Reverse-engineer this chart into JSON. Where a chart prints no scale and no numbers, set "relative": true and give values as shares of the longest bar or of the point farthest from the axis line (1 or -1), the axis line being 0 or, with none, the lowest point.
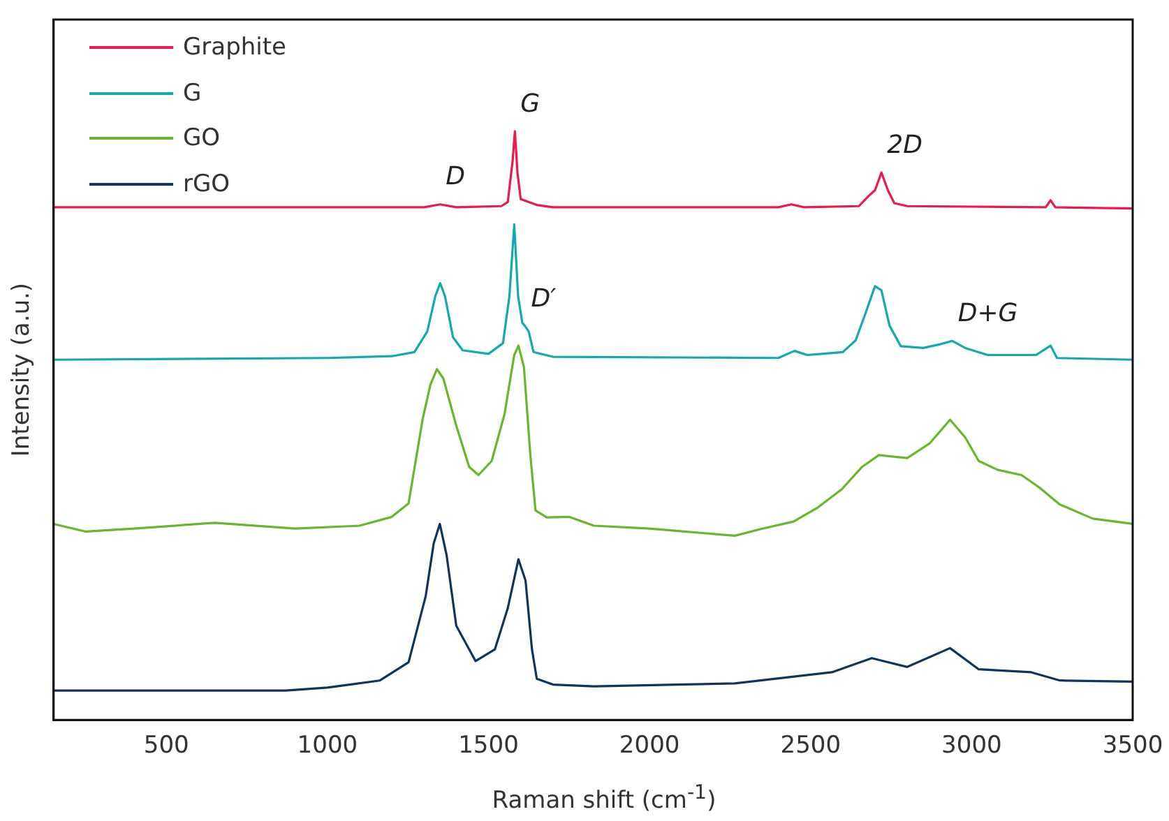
{
  "chart_data": {
    "type": "line",
    "relative": true,
    "xlabel": "Raman shift (cm$^{-1}$)",
    "ylabel": "Intensity (a.u.)",
    "xlim": [
      150,
      3500
    ],
    "xticks": [
      500,
      1000,
      1500,
      2000,
      2500,
      3000,
      3500
    ],
    "tick_labels": "x",
    "grid": false,
    "legend": "top left",
    "marker": "none",
    "line_style": "solid",
    "annotations": [
      {
        "text": "D",
        "x": 1350,
        "y": 0.876
      },
      {
        "text": "G",
        "x": 1582,
        "y": 1.0
      },
      {
        "text": "2D",
        "x": 2720,
        "y": 0.93
      },
      {
        "text": "D′",
        "x": 1615,
        "y": 0.668
      },
      {
        "text": "D+G",
        "x": 2940,
        "y": 0.644
      }
    ],
    "series": [
      {
        "name": "Graphite",
        "color": "#f0174a",
        "x": [
          150,
          1000,
          1300,
          1350,
          1400,
          1540,
          1560,
          1575,
          1582,
          1590,
          1600,
          1650,
          1700,
          2400,
          2440,
          2480,
          2650,
          2680,
          2700,
          2720,
          2740,
          2760,
          2800,
          3230,
          3245,
          3260,
          3500
        ],
        "values": [
          0.871,
          0.871,
          0.871,
          0.876,
          0.871,
          0.873,
          0.88,
          0.95,
          1.0,
          0.93,
          0.885,
          0.875,
          0.871,
          0.871,
          0.876,
          0.871,
          0.873,
          0.89,
          0.9,
          0.93,
          0.9,
          0.878,
          0.873,
          0.871,
          0.883,
          0.871,
          0.869
        ]
      },
      {
        "name": "G",
        "color": "#14a9ad",
        "x": [
          150,
          1000,
          1200,
          1270,
          1310,
          1335,
          1350,
          1365,
          1390,
          1420,
          1500,
          1545,
          1565,
          1580,
          1592,
          1605,
          1615,
          1625,
          1640,
          1700,
          2400,
          2450,
          2490,
          2600,
          2640,
          2670,
          2700,
          2720,
          2745,
          2780,
          2850,
          2900,
          2940,
          2980,
          3050,
          3200,
          3245,
          3265,
          3500
        ],
        "values": [
          0.612,
          0.615,
          0.618,
          0.625,
          0.66,
          0.72,
          0.742,
          0.72,
          0.65,
          0.628,
          0.622,
          0.64,
          0.72,
          0.842,
          0.72,
          0.675,
          0.668,
          0.66,
          0.625,
          0.617,
          0.615,
          0.627,
          0.62,
          0.625,
          0.645,
          0.69,
          0.737,
          0.73,
          0.67,
          0.635,
          0.632,
          0.638,
          0.644,
          0.632,
          0.62,
          0.62,
          0.636,
          0.615,
          0.612
        ]
      },
      {
        "name": "GO",
        "color": "#66b82a",
        "x": [
          150,
          250,
          400,
          650,
          900,
          1100,
          1200,
          1252,
          1296,
          1320,
          1340,
          1360,
          1400,
          1440,
          1469,
          1510,
          1550,
          1580,
          1593,
          1610,
          1630,
          1646,
          1681,
          1750,
          1827,
          2000,
          2265,
          2350,
          2447,
          2520,
          2597,
          2660,
          2712,
          2800,
          2870,
          2933,
          2980,
          3022,
          3080,
          3155,
          3210,
          3274,
          3376,
          3500
        ],
        "values": [
          0.333,
          0.32,
          0.325,
          0.335,
          0.325,
          0.33,
          0.345,
          0.368,
          0.512,
          0.57,
          0.596,
          0.58,
          0.5,
          0.43,
          0.416,
          0.44,
          0.52,
          0.62,
          0.636,
          0.6,
          0.45,
          0.356,
          0.344,
          0.345,
          0.33,
          0.325,
          0.313,
          0.325,
          0.337,
          0.36,
          0.392,
          0.43,
          0.45,
          0.445,
          0.47,
          0.51,
          0.48,
          0.44,
          0.425,
          0.416,
          0.395,
          0.366,
          0.342,
          0.333
        ]
      },
      {
        "name": "rGO",
        "color": "#0d3560",
        "x": [
          150,
          500,
          871,
          1000,
          1163,
          1252,
          1305,
          1330,
          1349,
          1370,
          1400,
          1460,
          1520,
          1560,
          1593,
          1615,
          1635,
          1650,
          1700,
          1827,
          2265,
          2566,
          2690,
          2800,
          2933,
          3022,
          3185,
          3274,
          3500
        ],
        "values": [
          0.05,
          0.05,
          0.05,
          0.055,
          0.067,
          0.098,
          0.21,
          0.3,
          0.333,
          0.28,
          0.16,
          0.1,
          0.12,
          0.19,
          0.273,
          0.237,
          0.12,
          0.07,
          0.06,
          0.057,
          0.062,
          0.081,
          0.105,
          0.09,
          0.122,
          0.086,
          0.081,
          0.067,
          0.065
        ]
      }
    ]
  }
}
